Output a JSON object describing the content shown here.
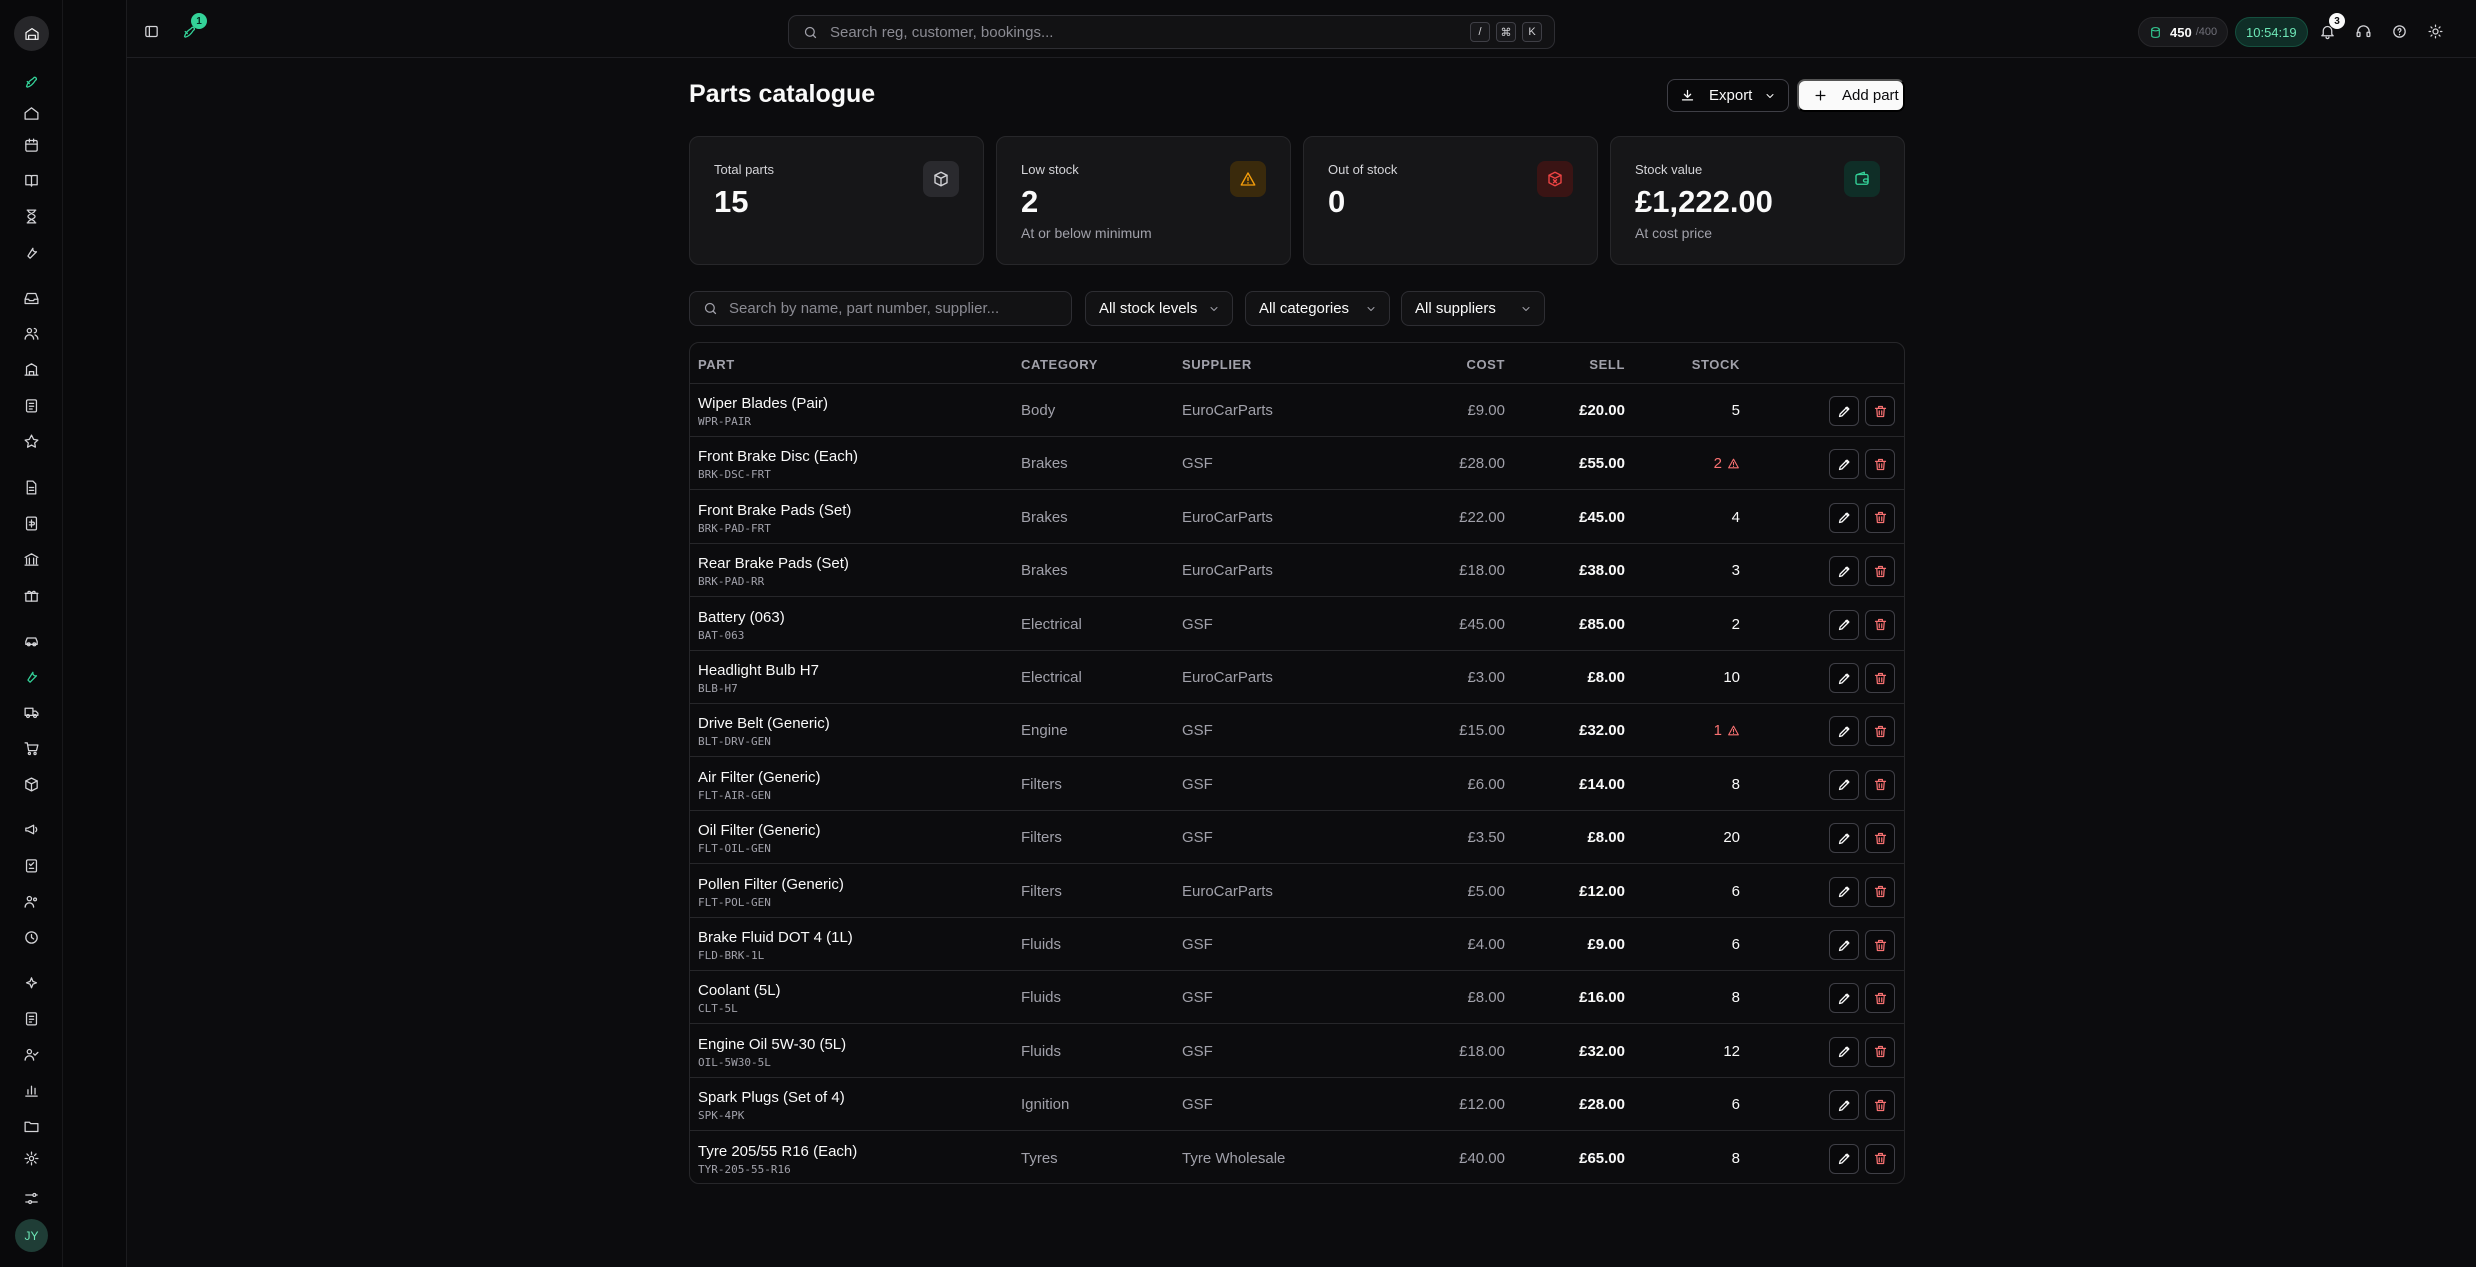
{
  "topbar": {
    "rocket_badge": "1",
    "search_placeholder": "Search reg, customer, bookings...",
    "shortcut_keys": [
      "/",
      "⌘",
      "K"
    ],
    "credits_value": "450",
    "credits_max": "/400",
    "clock": "10:54:19",
    "notifications_count": "3"
  },
  "sidebar": {
    "avatar_initials": "JY",
    "active_item": "wrench-icon"
  },
  "page": {
    "title": "Parts catalogue",
    "export_label": "Export",
    "add_label": "Add part"
  },
  "stats": [
    {
      "label": "Total parts",
      "value": "15",
      "sub": "",
      "icon": "package-icon",
      "color": "#d4d4d8"
    },
    {
      "label": "Low stock",
      "value": "2",
      "sub": "At or below minimum",
      "icon": "warning-icon",
      "color": "#f59e0b"
    },
    {
      "label": "Out of stock",
      "value": "0",
      "sub": "",
      "icon": "package-x-icon",
      "color": "#ef4444"
    },
    {
      "label": "Stock value",
      "value": "£1,222.00",
      "sub": "At cost price",
      "icon": "wallet-icon",
      "color": "#34d399"
    }
  ],
  "filters": {
    "search_placeholder": "Search by name, part number, supplier...",
    "stock_levels": "All stock levels",
    "categories": "All categories",
    "suppliers": "All suppliers"
  },
  "table": {
    "headers": {
      "part": "PART",
      "category": "CATEGORY",
      "supplier": "SUPPLIER",
      "cost": "COST",
      "sell": "SELL",
      "stock": "STOCK"
    },
    "rows": [
      {
        "name": "Wiper Blades (Pair)",
        "number": "WPR-PAIR",
        "category": "Body",
        "supplier": "EuroCarParts",
        "cost": "£9.00",
        "sell": "£20.00",
        "stock": "5",
        "low": false
      },
      {
        "name": "Front Brake Disc (Each)",
        "number": "BRK-DSC-FRT",
        "category": "Brakes",
        "supplier": "GSF",
        "cost": "£28.00",
        "sell": "£55.00",
        "stock": "2",
        "low": true
      },
      {
        "name": "Front Brake Pads (Set)",
        "number": "BRK-PAD-FRT",
        "category": "Brakes",
        "supplier": "EuroCarParts",
        "cost": "£22.00",
        "sell": "£45.00",
        "stock": "4",
        "low": false
      },
      {
        "name": "Rear Brake Pads (Set)",
        "number": "BRK-PAD-RR",
        "category": "Brakes",
        "supplier": "EuroCarParts",
        "cost": "£18.00",
        "sell": "£38.00",
        "stock": "3",
        "low": false
      },
      {
        "name": "Battery (063)",
        "number": "BAT-063",
        "category": "Electrical",
        "supplier": "GSF",
        "cost": "£45.00",
        "sell": "£85.00",
        "stock": "2",
        "low": false
      },
      {
        "name": "Headlight Bulb H7",
        "number": "BLB-H7",
        "category": "Electrical",
        "supplier": "EuroCarParts",
        "cost": "£3.00",
        "sell": "£8.00",
        "stock": "10",
        "low": false
      },
      {
        "name": "Drive Belt (Generic)",
        "number": "BLT-DRV-GEN",
        "category": "Engine",
        "supplier": "GSF",
        "cost": "£15.00",
        "sell": "£32.00",
        "stock": "1",
        "low": true
      },
      {
        "name": "Air Filter (Generic)",
        "number": "FLT-AIR-GEN",
        "category": "Filters",
        "supplier": "GSF",
        "cost": "£6.00",
        "sell": "£14.00",
        "stock": "8",
        "low": false
      },
      {
        "name": "Oil Filter (Generic)",
        "number": "FLT-OIL-GEN",
        "category": "Filters",
        "supplier": "GSF",
        "cost": "£3.50",
        "sell": "£8.00",
        "stock": "20",
        "low": false
      },
      {
        "name": "Pollen Filter (Generic)",
        "number": "FLT-POL-GEN",
        "category": "Filters",
        "supplier": "EuroCarParts",
        "cost": "£5.00",
        "sell": "£12.00",
        "stock": "6",
        "low": false
      },
      {
        "name": "Brake Fluid DOT 4 (1L)",
        "number": "FLD-BRK-1L",
        "category": "Fluids",
        "supplier": "GSF",
        "cost": "£4.00",
        "sell": "£9.00",
        "stock": "6",
        "low": false
      },
      {
        "name": "Coolant (5L)",
        "number": "CLT-5L",
        "category": "Fluids",
        "supplier": "GSF",
        "cost": "£8.00",
        "sell": "£16.00",
        "stock": "8",
        "low": false
      },
      {
        "name": "Engine Oil 5W-30 (5L)",
        "number": "OIL-5W30-5L",
        "category": "Fluids",
        "supplier": "GSF",
        "cost": "£18.00",
        "sell": "£32.00",
        "stock": "12",
        "low": false
      },
      {
        "name": "Spark Plugs (Set of 4)",
        "number": "SPK-4PK",
        "category": "Ignition",
        "supplier": "GSF",
        "cost": "£12.00",
        "sell": "£28.00",
        "stock": "6",
        "low": false
      },
      {
        "name": "Tyre 205/55 R16 (Each)",
        "number": "TYR-205-55-R16",
        "category": "Tyres",
        "supplier": "Tyre Wholesale",
        "cost": "£40.00",
        "sell": "£65.00",
        "stock": "8",
        "low": false
      }
    ]
  }
}
